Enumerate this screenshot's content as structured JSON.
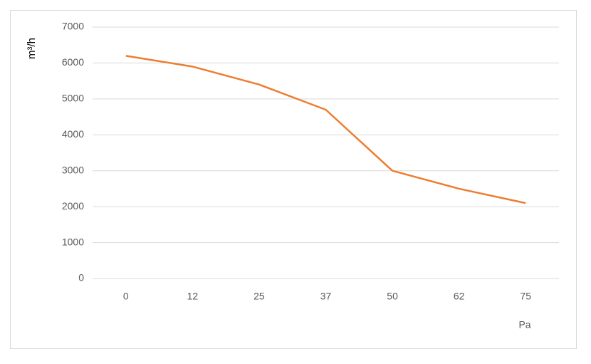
{
  "chart_data": {
    "type": "line",
    "y_label": "m³/h",
    "x_label": "Pa",
    "categories": [
      "0",
      "12",
      "25",
      "37",
      "50",
      "62",
      "75"
    ],
    "values": [
      6200,
      5900,
      5400,
      4700,
      3000,
      2500,
      2100
    ],
    "color": "#ed7d31",
    "ylim": [
      0,
      7000
    ],
    "yticks": [
      0,
      1000,
      2000,
      3000,
      4000,
      5000,
      6000,
      7000
    ],
    "grid": true
  }
}
